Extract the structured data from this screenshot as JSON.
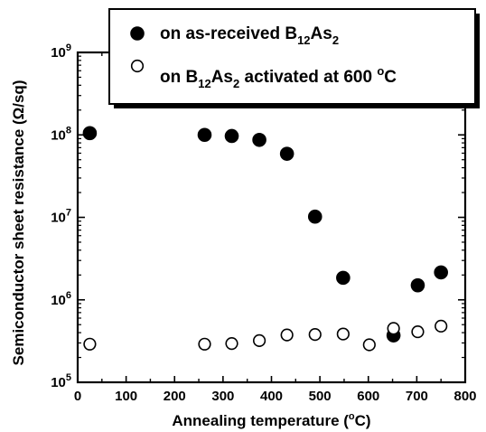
{
  "chart_data": {
    "type": "scatter",
    "xlabel": "Annealing temperature (°C)",
    "ylabel": "Semiconductor sheet resistance (Ω/sq)",
    "xlim": [
      0,
      800
    ],
    "ylim": [
      100000,
      1000000000
    ],
    "yscale": "log",
    "x_ticks": [
      "0",
      "100",
      "200",
      "300",
      "400",
      "500",
      "600",
      "700",
      "800"
    ],
    "y_ticks": [
      {
        "base": "10",
        "exp": "5"
      },
      {
        "base": "10",
        "exp": "6"
      },
      {
        "base": "10",
        "exp": "7"
      },
      {
        "base": "10",
        "exp": "8"
      },
      {
        "base": "10",
        "exp": "9"
      }
    ],
    "legend_position": "top-right",
    "series": [
      {
        "name": "on as-received B12As2",
        "legend_parts": [
          {
            "t": "on as-received B",
            "sub": false
          },
          {
            "t": "12",
            "sub": true
          },
          {
            "t": "As",
            "sub": false
          },
          {
            "t": "2",
            "sub": true
          }
        ],
        "marker": "filled-circle",
        "points": [
          {
            "x": 25,
            "y": 105000000
          },
          {
            "x": 262,
            "y": 100000000
          },
          {
            "x": 318,
            "y": 97000000
          },
          {
            "x": 375,
            "y": 87000000
          },
          {
            "x": 432,
            "y": 59000000
          },
          {
            "x": 490,
            "y": 10200000
          },
          {
            "x": 548,
            "y": 1850000
          },
          {
            "x": 652,
            "y": 370000
          },
          {
            "x": 702,
            "y": 1500000
          },
          {
            "x": 750,
            "y": 2150000
          }
        ]
      },
      {
        "name": "on B12As2 activated at 600 °C",
        "legend_parts": [
          {
            "t": "on B",
            "sub": false
          },
          {
            "t": "12",
            "sub": true
          },
          {
            "t": "As",
            "sub": false
          },
          {
            "t": "2",
            "sub": true
          },
          {
            "t": " activated at 600 ",
            "sub": false
          },
          {
            "t": "o",
            "sup": true
          },
          {
            "t": "C",
            "sub": false
          }
        ],
        "marker": "open-circle",
        "points": [
          {
            "x": 25,
            "y": 290000
          },
          {
            "x": 262,
            "y": 290000
          },
          {
            "x": 318,
            "y": 295000
          },
          {
            "x": 375,
            "y": 320000
          },
          {
            "x": 432,
            "y": 375000
          },
          {
            "x": 490,
            "y": 380000
          },
          {
            "x": 548,
            "y": 385000
          },
          {
            "x": 602,
            "y": 285000
          },
          {
            "x": 652,
            "y": 450000
          },
          {
            "x": 702,
            "y": 410000
          },
          {
            "x": 750,
            "y": 480000
          }
        ]
      }
    ]
  }
}
